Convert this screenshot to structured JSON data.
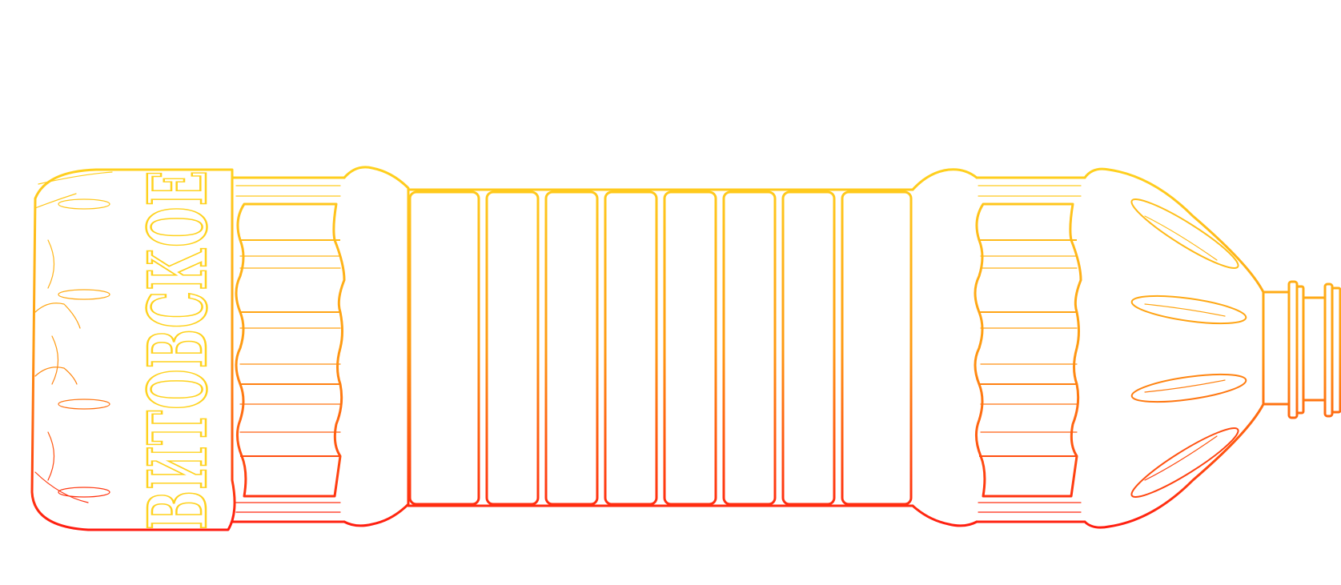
{
  "drawing": {
    "subject": "bottle-outline",
    "brand_label": "ВИТОВСКОЕ",
    "colors": {
      "top": "#FFD21F",
      "middle": "#FF9A12",
      "bottom": "#FF1A10",
      "background": "#FFFFFF"
    }
  }
}
